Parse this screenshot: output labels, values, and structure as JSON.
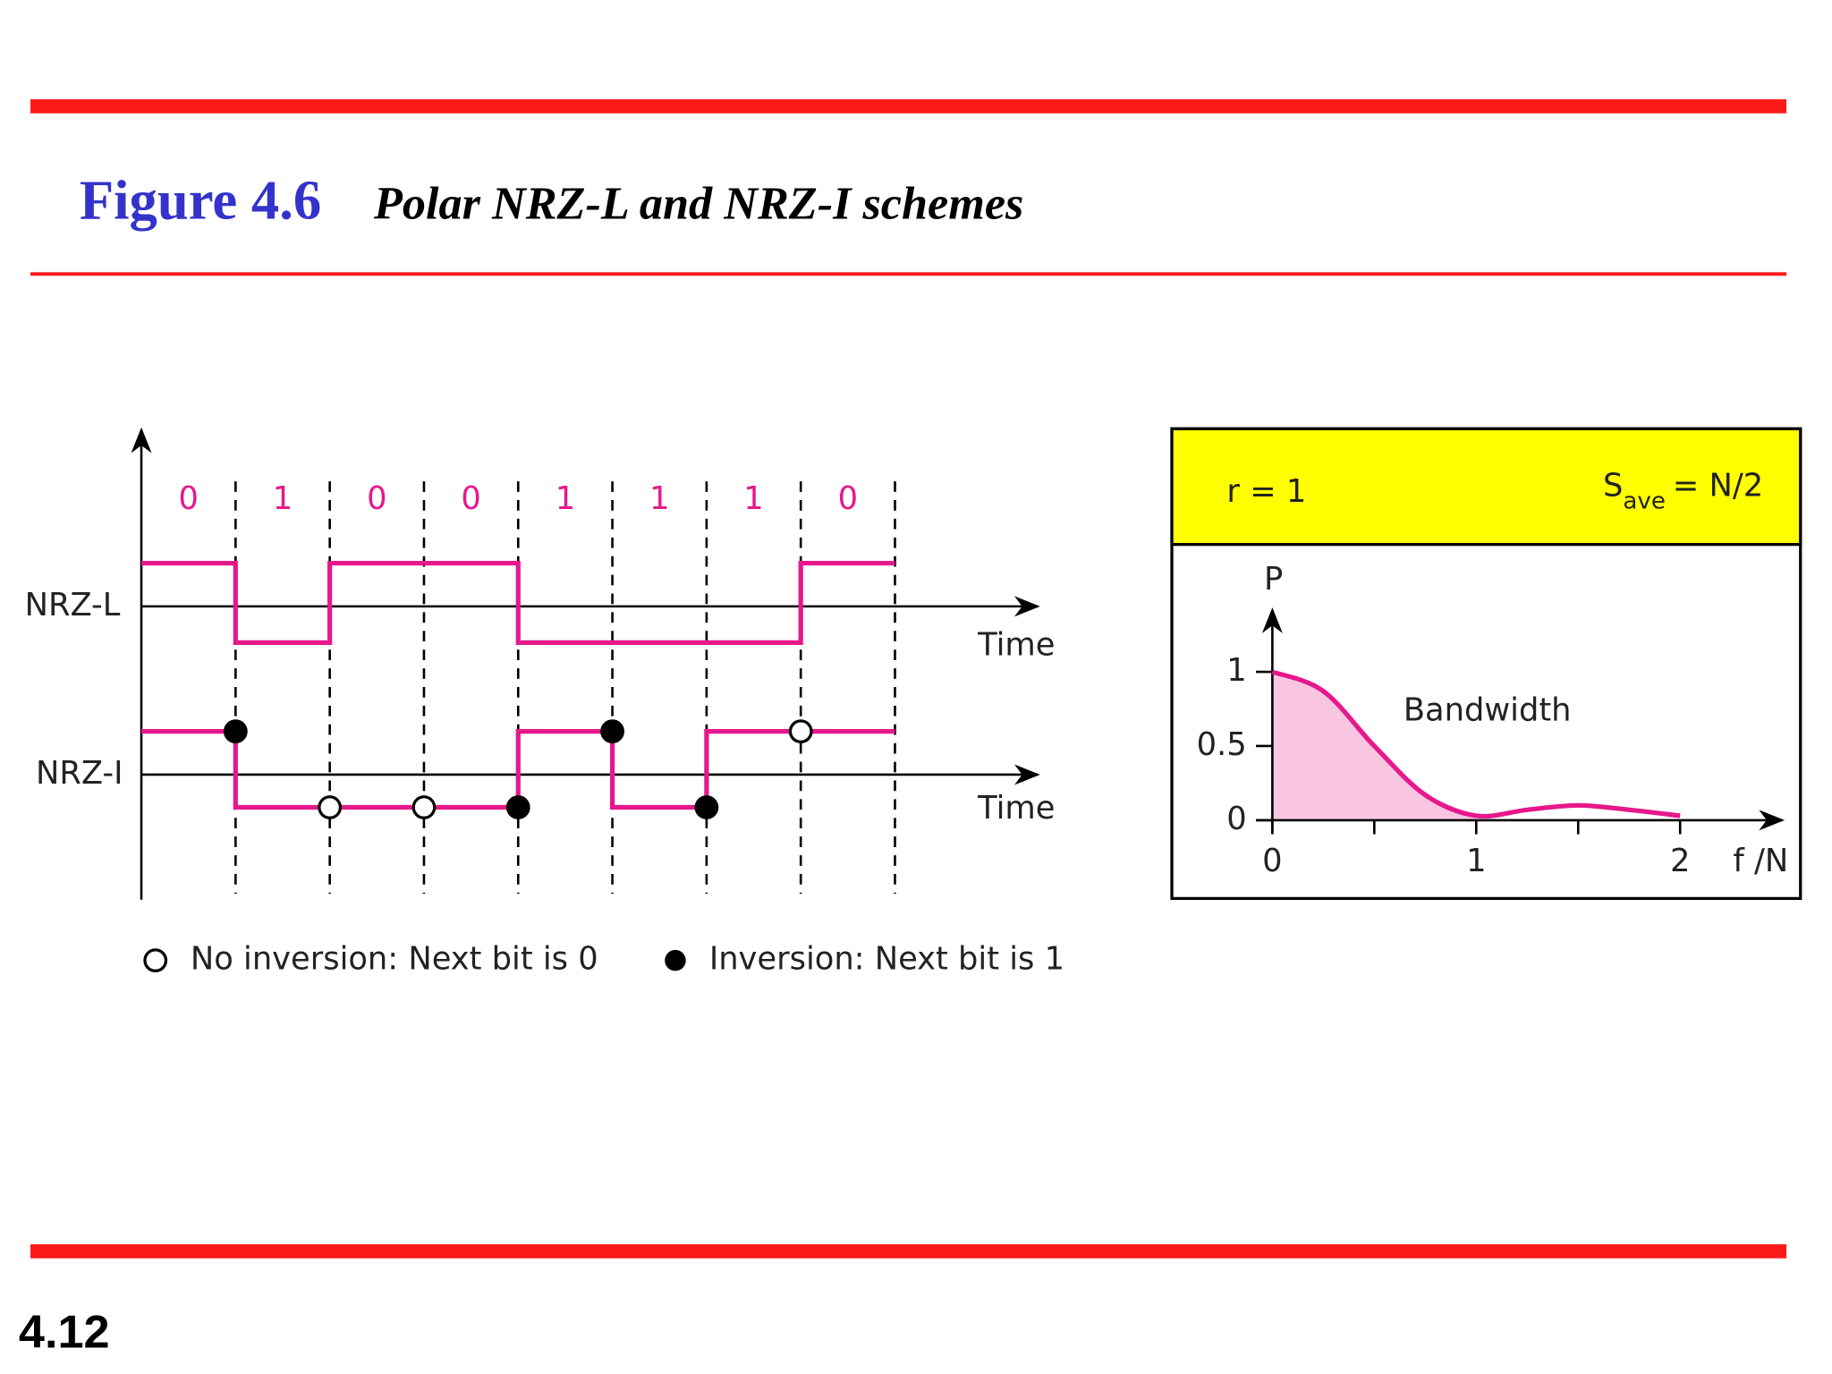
{
  "header": {
    "figure": "Figure 4.6",
    "title": "Polar NRZ-L and NRZ-I schemes"
  },
  "waveforms": {
    "bits": [
      0,
      1,
      0,
      0,
      1,
      1,
      1,
      0
    ],
    "nrz_l_label": "NRZ-L",
    "nrz_i_label": "NRZ-I",
    "time_label": "Time"
  },
  "legend": {
    "open": "No inversion: Next bit is 0",
    "filled": "Inversion: Next bit is 1"
  },
  "spectrum": {
    "ratio": "r = 1",
    "save_main": "S",
    "save_sub": "ave",
    "save_rest": "= N/2",
    "ylabel": "P",
    "xlabel": "f /N",
    "annotation": "Bandwidth",
    "xlim": [
      0,
      2.5
    ],
    "ylim": [
      0,
      1.4
    ],
    "xticks": [
      0,
      1,
      2
    ],
    "xminor_ticks": [
      0.5,
      1.5
    ],
    "yticks": [
      0,
      0.5,
      1
    ],
    "curve": {
      "x": [
        0,
        0.25,
        0.5,
        0.75,
        1,
        1.25,
        1.5,
        1.75,
        2
      ],
      "y": [
        1,
        0.87,
        0.5,
        0.17,
        0.03,
        0.07,
        0.1,
        0.07,
        0.03
      ]
    },
    "band_end": 1
  },
  "footer": {
    "page": "4.12"
  }
}
